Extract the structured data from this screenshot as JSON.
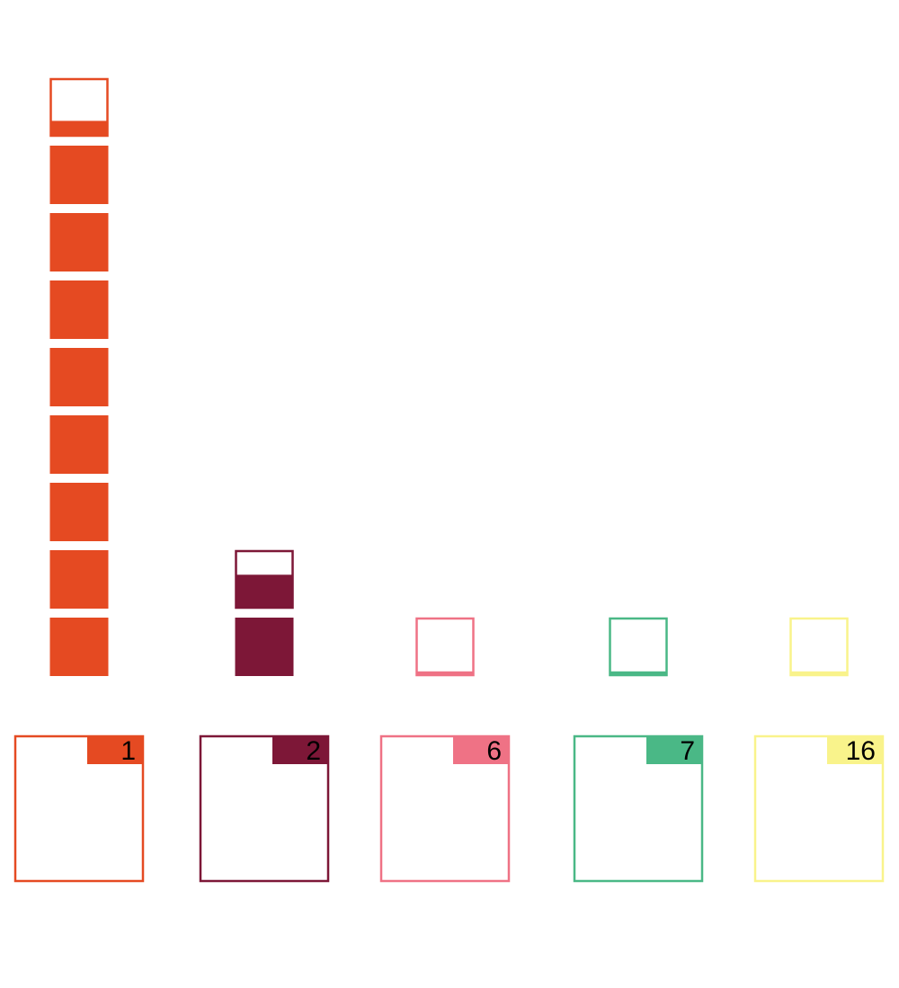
{
  "chart_data": {
    "type": "bar",
    "style": "unit-pictograph",
    "categories": [
      "1",
      "2",
      "6",
      "7",
      "16"
    ],
    "values": [
      8.27,
      1.58,
      0.08,
      0.08,
      0.08
    ],
    "colors": [
      "#e54a22",
      "#7d1737",
      "#ef7285",
      "#4ab886",
      "#f9f38b"
    ],
    "title": "",
    "xlabel": "",
    "ylabel": "",
    "grid": false,
    "legend": "none"
  }
}
